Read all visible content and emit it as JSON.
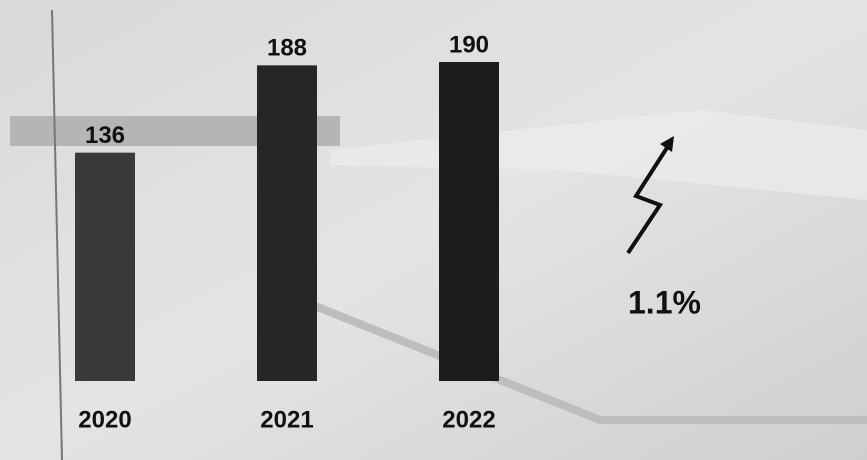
{
  "chart_data": {
    "type": "bar",
    "categories": [
      "2020",
      "2021",
      "2022"
    ],
    "values": [
      136,
      188,
      190
    ],
    "colors": [
      "#3a3a3a",
      "#262626",
      "#1c1c1c"
    ],
    "annotation": "1.1%"
  }
}
